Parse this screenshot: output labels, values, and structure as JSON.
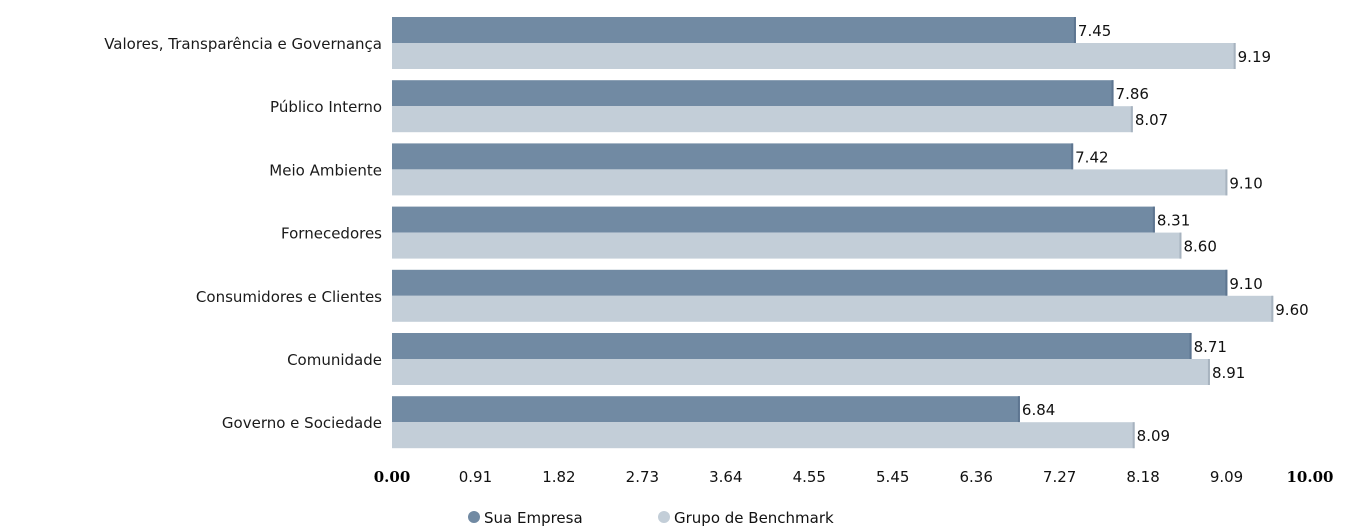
{
  "chart_data": {
    "type": "bar",
    "orientation": "horizontal",
    "categories": [
      "Valores, Transparência e Governança",
      "Público Interno",
      "Meio Ambiente",
      "Fornecedores",
      "Consumidores e Clientes",
      "Comunidade",
      "Governo e Sociedade"
    ],
    "series": [
      {
        "name": "Sua Empresa",
        "color": "#718aa3",
        "values": [
          7.45,
          7.86,
          7.42,
          8.31,
          9.1,
          8.71,
          6.84
        ],
        "labels": [
          "7.45",
          "7.86",
          "7.42",
          "8.31",
          "9.10",
          "8.71",
          "6.84"
        ]
      },
      {
        "name": "Grupo de Benchmark",
        "color": "#c3ced8",
        "values": [
          9.19,
          8.07,
          9.1,
          8.6,
          9.6,
          8.91,
          8.09
        ],
        "labels": [
          "9.19",
          "8.07",
          "9.10",
          "8.60",
          "9.60",
          "8.91",
          "8.09"
        ]
      }
    ],
    "x_ticks": [
      "0.00",
      "0.91",
      "1.82",
      "2.73",
      "3.64",
      "4.55",
      "5.45",
      "6.36",
      "7.27",
      "8.18",
      "9.09",
      "10.00"
    ],
    "xlim": [
      0,
      10
    ],
    "grid": false,
    "legend_position": "bottom-center"
  }
}
